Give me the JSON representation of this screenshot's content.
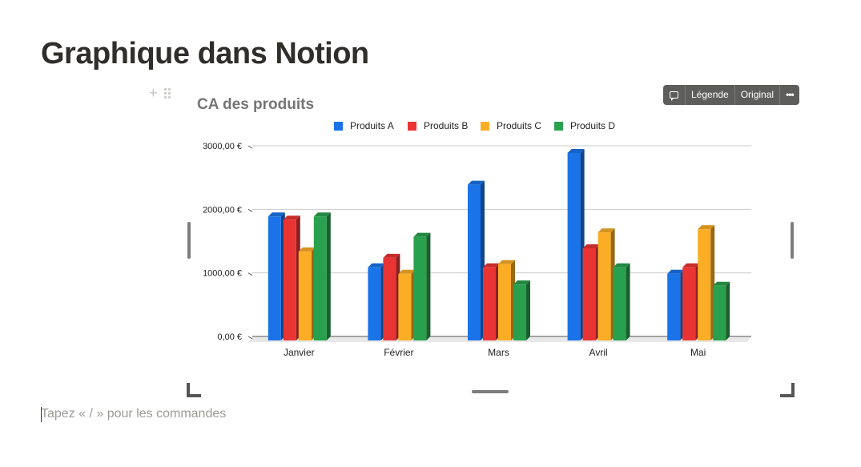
{
  "page": {
    "title": "Graphique dans Notion",
    "placeholder": "Tapez « / » pour les commandes"
  },
  "block_handle": {
    "add_icon": "+",
    "drag_icon": "drag-handle-icon"
  },
  "toolbar": {
    "comment_icon": "comment-icon",
    "caption_label": "Légende",
    "original_label": "Original",
    "more_icon": "•••"
  },
  "colors": {
    "Produits A": "#1a73e8",
    "Produits B": "#ea3434",
    "Produits C": "#fbad26",
    "Produits D": "#29a04d",
    "title": "#757575",
    "grid": "#cccccc"
  },
  "chart_data": {
    "type": "bar",
    "title": "CA des produits",
    "categories": [
      "Janvier",
      "Février",
      "Mars",
      "Avril",
      "Mai"
    ],
    "series": [
      {
        "name": "Produits A",
        "values": [
          1950,
          1150,
          2450,
          2950,
          1050
        ]
      },
      {
        "name": "Produits B",
        "values": [
          1900,
          1300,
          1150,
          1450,
          1150
        ]
      },
      {
        "name": "Produits C",
        "values": [
          1400,
          1050,
          1200,
          1700,
          1750
        ]
      },
      {
        "name": "Produits D",
        "values": [
          1950,
          1630,
          880,
          1150,
          860
        ]
      }
    ],
    "yticks": [
      "0,00 €",
      "1000,00 €",
      "2000,00 €",
      "3000,00 €"
    ],
    "ylim": [
      0,
      3000
    ],
    "grid": true,
    "legend_position": "top",
    "style": "3d"
  }
}
